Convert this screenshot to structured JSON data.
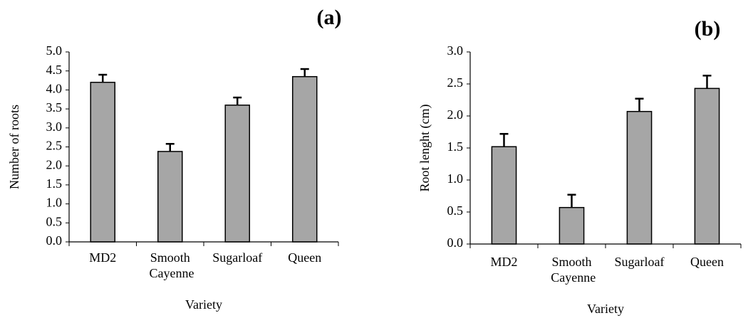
{
  "chart_data": [
    {
      "type": "bar",
      "title": "(a)",
      "x_label": "Variety",
      "y_label": "Number of roots",
      "categories": [
        "MD2",
        "Smooth Cayenne",
        "Sugarloaf",
        "Queen"
      ],
      "values": [
        4.2,
        2.38,
        3.6,
        4.35
      ],
      "errors": [
        0.2,
        0.2,
        0.2,
        0.2
      ],
      "color": "#a6a6a6",
      "ylim": [
        0,
        5
      ],
      "yticks": [
        {
          "value": 0,
          "label": "0.0"
        },
        {
          "value": 0.5,
          "label": "0.5"
        },
        {
          "value": 1,
          "label": "1.0"
        },
        {
          "value": 1.5,
          "label": "1.5"
        },
        {
          "value": 2,
          "label": "2.0"
        },
        {
          "value": 2.5,
          "label": "2.5"
        },
        {
          "value": 3,
          "label": "3.0"
        },
        {
          "value": 3.5,
          "label": "3.5"
        },
        {
          "value": 4,
          "label": "4.0"
        },
        {
          "value": 4.5,
          "label": "4.5"
        },
        {
          "value": 5,
          "label": "5.0"
        }
      ],
      "grid": false
    },
    {
      "type": "bar",
      "title": "(b)",
      "x_label": "Variety",
      "y_label": "Root lenght (cm)",
      "categories": [
        "MD2",
        "Smooth Cayenne",
        "Sugarloaf",
        "Queen"
      ],
      "values": [
        1.52,
        0.57,
        2.07,
        2.43
      ],
      "errors": [
        0.2,
        0.2,
        0.2,
        0.2
      ],
      "color": "#a6a6a6",
      "ylim": [
        0,
        3
      ],
      "yticks": [
        {
          "value": 0,
          "label": "0.0"
        },
        {
          "value": 0.5,
          "label": "0.5"
        },
        {
          "value": 1,
          "label": "1.0"
        },
        {
          "value": 1.5,
          "label": "1.5"
        },
        {
          "value": 2,
          "label": "2.0"
        },
        {
          "value": 2.5,
          "label": "2.5"
        },
        {
          "value": 3,
          "label": "3.0"
        }
      ],
      "grid": false
    }
  ]
}
